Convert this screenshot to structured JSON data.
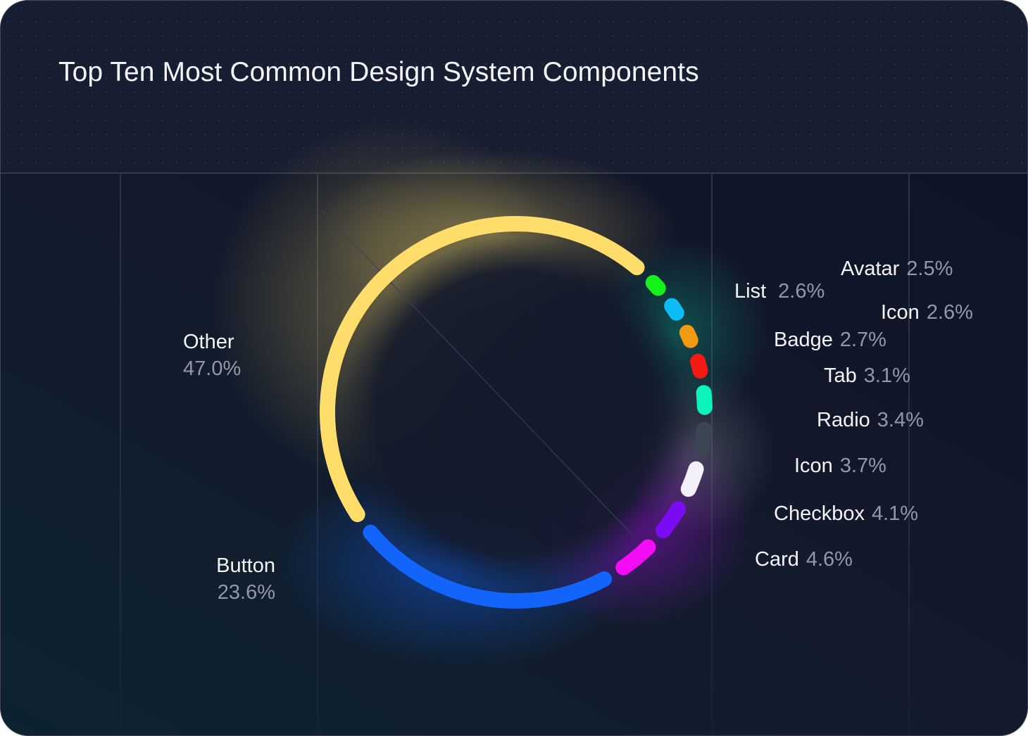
{
  "header": {
    "title": "Top Ten Most Common Design System Components"
  },
  "colors": {
    "background_top": "#181e31",
    "background_bottom": "#0e1227",
    "label_name": "#f4f5f8",
    "label_pct": "#9398a6"
  },
  "chart_data": {
    "type": "pie",
    "variant": "donut-ring",
    "title": "Top Ten Most Common Design System Components",
    "categories": [
      "Avatar",
      "List",
      "Icon",
      "Badge",
      "Tab",
      "Radio",
      "Icon",
      "Checkbox",
      "Card",
      "Button",
      "Other"
    ],
    "values": [
      2.5,
      2.6,
      2.6,
      2.7,
      3.1,
      3.4,
      3.7,
      4.1,
      4.6,
      23.6,
      47.0
    ],
    "unit": "%",
    "segments": [
      {
        "name": "Avatar",
        "value": 2.5,
        "pct_label": "2.5%",
        "color": "#14f21a"
      },
      {
        "name": "List",
        "value": 2.6,
        "pct_label": "2.6%",
        "color": "#0cbcf4"
      },
      {
        "name": "Icon",
        "value": 2.6,
        "pct_label": "2.6%",
        "color": "#f29a12"
      },
      {
        "name": "Badge",
        "value": 2.7,
        "pct_label": "2.7%",
        "color": "#f21a12"
      },
      {
        "name": "Tab",
        "value": 3.1,
        "pct_label": "3.1%",
        "color": "#0cf4bc"
      },
      {
        "name": "Radio",
        "value": 3.4,
        "pct_label": "3.4%",
        "color": "#3a4654"
      },
      {
        "name": "Icon",
        "value": 3.7,
        "pct_label": "3.7%",
        "color": "#f4f0fa"
      },
      {
        "name": "Checkbox",
        "value": 4.1,
        "pct_label": "4.1%",
        "color": "#7a0cf4"
      },
      {
        "name": "Card",
        "value": 4.6,
        "pct_label": "4.6%",
        "color": "#f40cf4"
      },
      {
        "name": "Button",
        "value": 23.6,
        "pct_label": "23.6%",
        "color": "#1264fb"
      },
      {
        "name": "Other",
        "value": 47.0,
        "pct_label": "47.0%",
        "color": "#ffdd6b"
      }
    ],
    "legend_position": "callout-labels",
    "grid": true
  },
  "labels": [
    {
      "name": "Avatar",
      "pct": "2.5%"
    },
    {
      "name": "List",
      "pct": "2.6%"
    },
    {
      "name": "Icon",
      "pct": "2.6%"
    },
    {
      "name": "Badge",
      "pct": "2.7%"
    },
    {
      "name": "Tab",
      "pct": "3.1%"
    },
    {
      "name": "Radio",
      "pct": "3.4%"
    },
    {
      "name": "Icon",
      "pct": "3.7%"
    },
    {
      "name": "Checkbox",
      "pct": "4.1%"
    },
    {
      "name": "Card",
      "pct": "4.6%"
    },
    {
      "name": "Button",
      "pct": "23.6%"
    },
    {
      "name": "Other",
      "pct": "47.0%"
    }
  ]
}
